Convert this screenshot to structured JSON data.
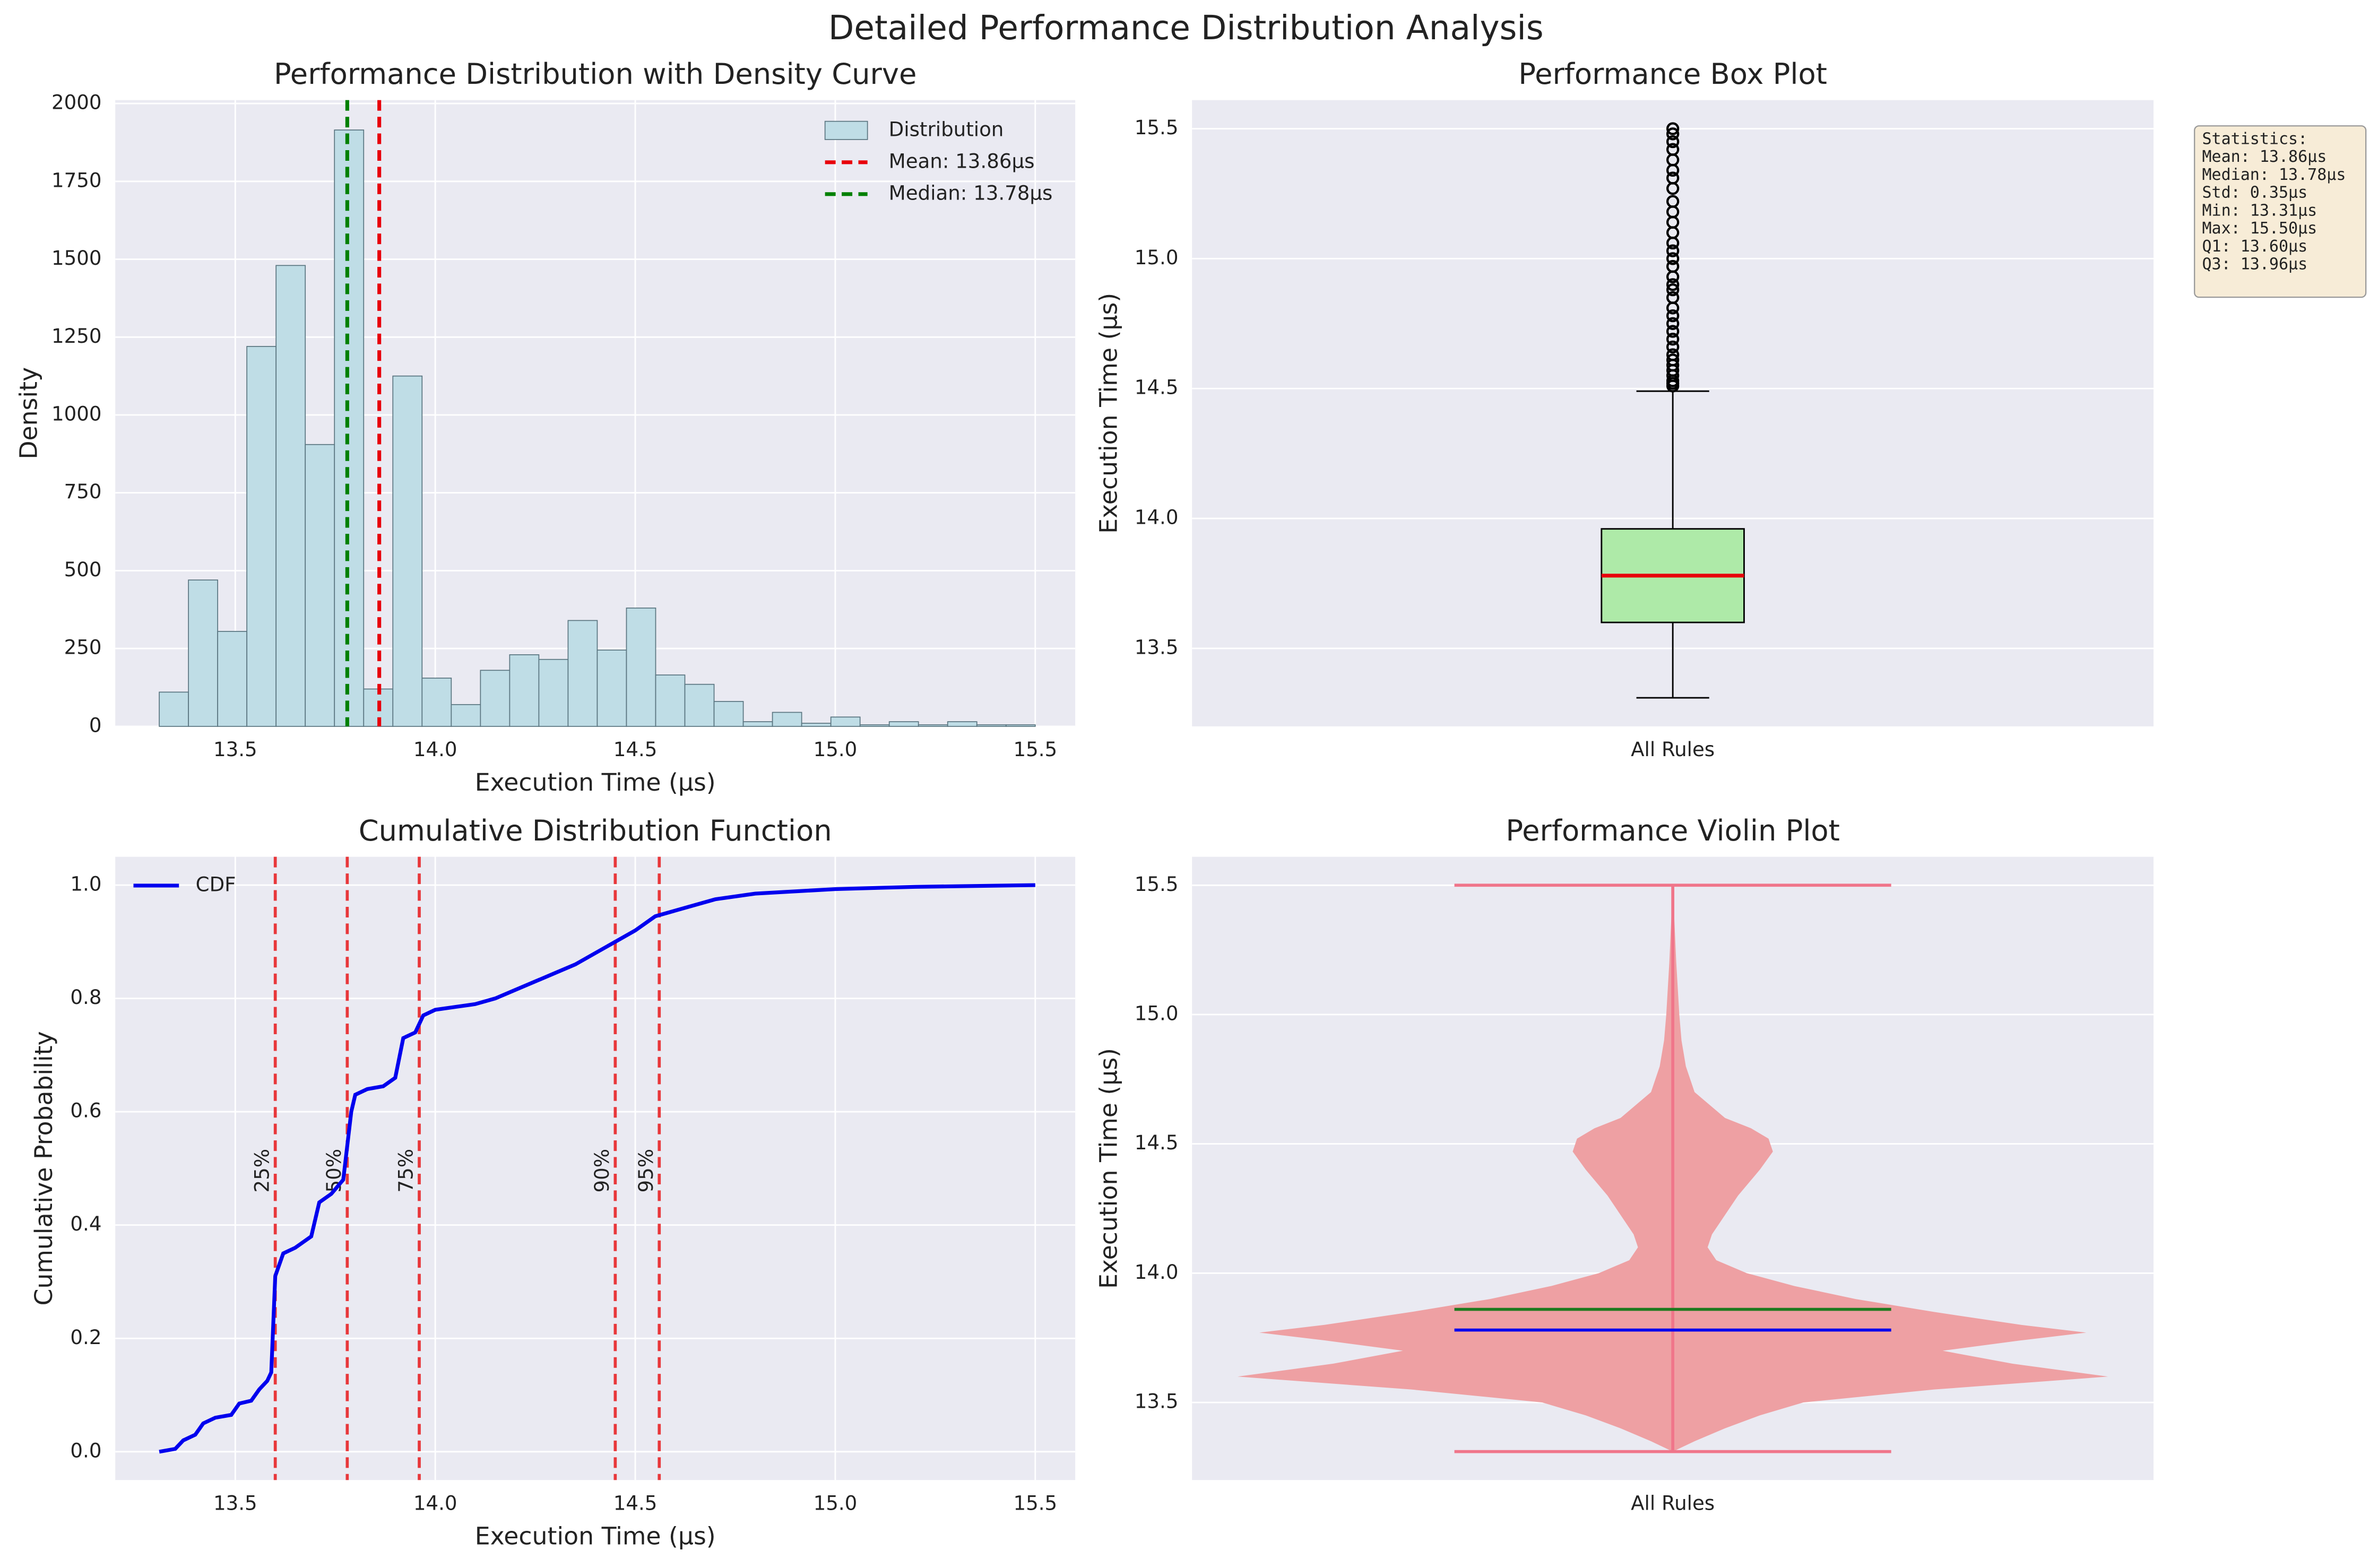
{
  "title": "Detailed Performance Distribution Analysis",
  "chart_data": [
    {
      "type": "histogram",
      "title": "Performance Distribution with Density Curve",
      "x_label": "Execution Time (μs)",
      "y_label": "Density",
      "bins": [
        13.31,
        13.383,
        13.456,
        13.529,
        13.602,
        13.675,
        13.748,
        13.821,
        13.894,
        13.967,
        14.04,
        14.113,
        14.186,
        14.259,
        14.332,
        14.405,
        14.478,
        14.551,
        14.624,
        14.697,
        14.77,
        14.843,
        14.916,
        14.989,
        15.062,
        15.135,
        15.208,
        15.281,
        15.354,
        15.427,
        15.5
      ],
      "values": [
        110,
        470,
        305,
        1220,
        1480,
        905,
        1915,
        120,
        1125,
        155,
        70,
        180,
        230,
        215,
        340,
        245,
        380,
        165,
        135,
        80,
        15,
        45,
        10,
        30,
        5,
        15,
        5,
        15,
        5,
        5
      ],
      "name": "Distribution",
      "color": "#bfdde6",
      "vlines": [
        {
          "name": "Mean: 13.86μs",
          "value": 13.86,
          "color": "#e8000b"
        },
        {
          "name": "Median: 13.78μs",
          "value": 13.78,
          "color": "#008000"
        }
      ],
      "xlim": [
        13.2,
        15.6
      ],
      "xticks": [
        13.5,
        {
          "value": 14,
          "label": "14.0"
        },
        14.5,
        {
          "value": 15,
          "label": "15.0"
        },
        15.5
      ],
      "ylim": [
        0,
        2011
      ],
      "yticks": [
        0,
        250,
        500,
        750,
        1000,
        1250,
        1500,
        1750,
        2000
      ],
      "grid": true,
      "legend": "upper right"
    },
    {
      "type": "box",
      "title": "Performance Box Plot",
      "y_label": "Execution Time (μs)",
      "categories": [
        "All Rules"
      ],
      "whisker_low": 13.31,
      "q1": 13.6,
      "median": 13.78,
      "q3": 13.96,
      "whisker_high": 14.49,
      "outliers": [
        14.51,
        14.52,
        14.53,
        14.55,
        14.57,
        14.59,
        14.61,
        14.63,
        14.66,
        14.69,
        14.72,
        14.75,
        14.78,
        14.81,
        14.85,
        14.88,
        14.9,
        14.93,
        14.97,
        15.0,
        15.03,
        15.06,
        15.1,
        15.14,
        15.18,
        15.22,
        15.27,
        15.31,
        15.34,
        15.38,
        15.42,
        15.45,
        15.48,
        15.5
      ],
      "color": "#aeeaa8",
      "median_color": "#e8000b",
      "ylim": [
        13.2,
        15.61
      ],
      "yticks": [
        13.5,
        {
          "value": 14,
          "label": "14.0"
        },
        14.5,
        {
          "value": 15,
          "label": "15.0"
        },
        15.5
      ],
      "grid": true,
      "stats_box": [
        "Statistics:",
        "Mean: 13.86μs",
        "Median: 13.78μs",
        "Std: 0.35μs",
        "Min: 13.31μs",
        "Max: 15.50μs",
        "Q1: 13.60μs",
        "Q3: 13.96μs"
      ]
    },
    {
      "type": "line",
      "title": "Cumulative Distribution Function",
      "x_label": "Execution Time (μs)",
      "y_label": "Cumulative Probability",
      "series": [
        {
          "name": "CDF",
          "color": "#0000ee",
          "x": [
            13.31,
            13.35,
            13.37,
            13.4,
            13.42,
            13.45,
            13.49,
            13.51,
            13.54,
            13.56,
            13.58,
            13.59,
            13.6,
            13.62,
            13.65,
            13.67,
            13.69,
            13.71,
            13.74,
            13.77,
            13.79,
            13.8,
            13.83,
            13.87,
            13.9,
            13.92,
            13.95,
            13.97,
            14.0,
            14.05,
            14.1,
            14.15,
            14.2,
            14.25,
            14.3,
            14.35,
            14.4,
            14.45,
            14.5,
            14.55,
            14.6,
            14.7,
            14.8,
            15.0,
            15.2,
            15.5
          ],
          "values": [
            0,
            0.005,
            0.02,
            0.03,
            0.05,
            0.06,
            0.065,
            0.085,
            0.09,
            0.11,
            0.125,
            0.14,
            0.31,
            0.35,
            0.36,
            0.37,
            0.38,
            0.44,
            0.455,
            0.48,
            0.6,
            0.63,
            0.64,
            0.645,
            0.66,
            0.73,
            0.74,
            0.77,
            0.78,
            0.785,
            0.79,
            0.8,
            0.815,
            0.83,
            0.845,
            0.86,
            0.88,
            0.9,
            0.92,
            0.945,
            0.955,
            0.975,
            0.985,
            0.993,
            0.997,
            1.0
          ]
        }
      ],
      "vlines": [
        {
          "name": "25%",
          "value": 13.6
        },
        {
          "name": "50%",
          "value": 13.78
        },
        {
          "name": "75%",
          "value": 13.96
        },
        {
          "name": "90%",
          "value": 14.45
        },
        {
          "name": "95%",
          "value": 14.56
        }
      ],
      "vline_color": "#e8383b",
      "xlim": [
        13.2,
        15.6
      ],
      "xticks": [
        13.5,
        {
          "value": 14,
          "label": "14.0"
        },
        14.5,
        {
          "value": 15,
          "label": "15.0"
        },
        15.5
      ],
      "ylim": [
        -0.05,
        1.05
      ],
      "yticks": [
        {
          "value": 0,
          "label": "0.0"
        },
        0.2,
        0.4,
        0.6,
        0.8,
        {
          "value": 1,
          "label": "1.0"
        }
      ],
      "grid": true,
      "legend": "upper left"
    },
    {
      "type": "violin",
      "title": "Performance Violin Plot",
      "y_label": "Execution Time (μs)",
      "categories": [
        "All Rules"
      ],
      "y": [
        13.31,
        13.35,
        13.4,
        13.45,
        13.5,
        13.55,
        13.6,
        13.65,
        13.7,
        13.74,
        13.77,
        13.8,
        13.85,
        13.9,
        13.95,
        14.0,
        14.05,
        14.1,
        14.15,
        14.2,
        14.3,
        14.4,
        14.47,
        14.52,
        14.56,
        14.6,
        14.7,
        14.8,
        14.9,
        15.0,
        15.2,
        15.5
      ],
      "density": [
        0,
        0.05,
        0.12,
        0.2,
        0.3,
        0.6,
        1.0,
        0.78,
        0.62,
        0.8,
        0.95,
        0.8,
        0.6,
        0.42,
        0.28,
        0.17,
        0.1,
        0.08,
        0.09,
        0.11,
        0.15,
        0.2,
        0.23,
        0.22,
        0.18,
        0.12,
        0.05,
        0.03,
        0.02,
        0.015,
        0.008,
        0
      ],
      "min": 13.31,
      "max": 15.5,
      "mean": 13.86,
      "median": 13.78,
      "color": "#eea0a3",
      "line_color": "#f0758a",
      "mean_color": "#1e7a1e",
      "median_color": "#0000ee",
      "ylim": [
        13.2,
        15.61
      ],
      "yticks": [
        13.5,
        {
          "value": 14,
          "label": "14.0"
        },
        14.5,
        {
          "value": 15,
          "label": "15.0"
        },
        15.5
      ],
      "grid": true
    }
  ]
}
